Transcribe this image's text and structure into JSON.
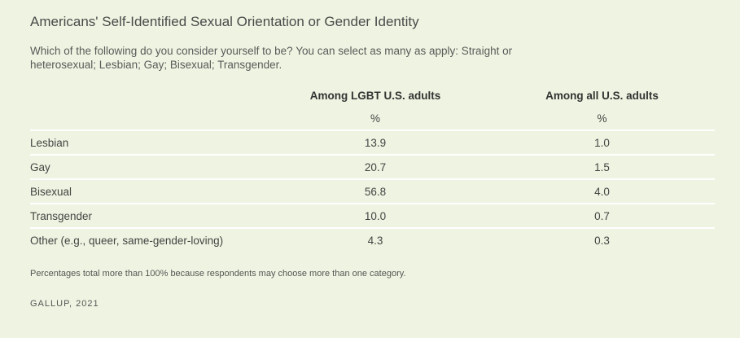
{
  "title": "Americans' Self-Identified Sexual Orientation or Gender Identity",
  "subtitle": "Which of the following do you consider yourself to be? You can select as many as apply: Straight or heterosexual; Lesbian; Gay; Bisexual; Transgender.",
  "chart_data": {
    "type": "table",
    "columns": [
      {
        "header": "",
        "unit": ""
      },
      {
        "header": "Among LGBT U.S. adults",
        "unit": "%"
      },
      {
        "header": "Among all U.S. adults",
        "unit": "%"
      }
    ],
    "rows": [
      {
        "label": "Lesbian",
        "values": [
          "13.9",
          "1.0"
        ]
      },
      {
        "label": "Gay",
        "values": [
          "20.7",
          "1.5"
        ]
      },
      {
        "label": "Bisexual",
        "values": [
          "56.8",
          "4.0"
        ]
      },
      {
        "label": "Transgender",
        "values": [
          "10.0",
          "0.7"
        ]
      },
      {
        "label": "Other (e.g., queer, same-gender-loving)",
        "values": [
          "4.3",
          "0.3"
        ]
      }
    ]
  },
  "footnote": "Percentages total more than 100% because respondents may choose more than one category.",
  "source": "GALLUP, 2021",
  "colors": {
    "background": "#eef4e1",
    "row_divider": "#ffffff"
  }
}
